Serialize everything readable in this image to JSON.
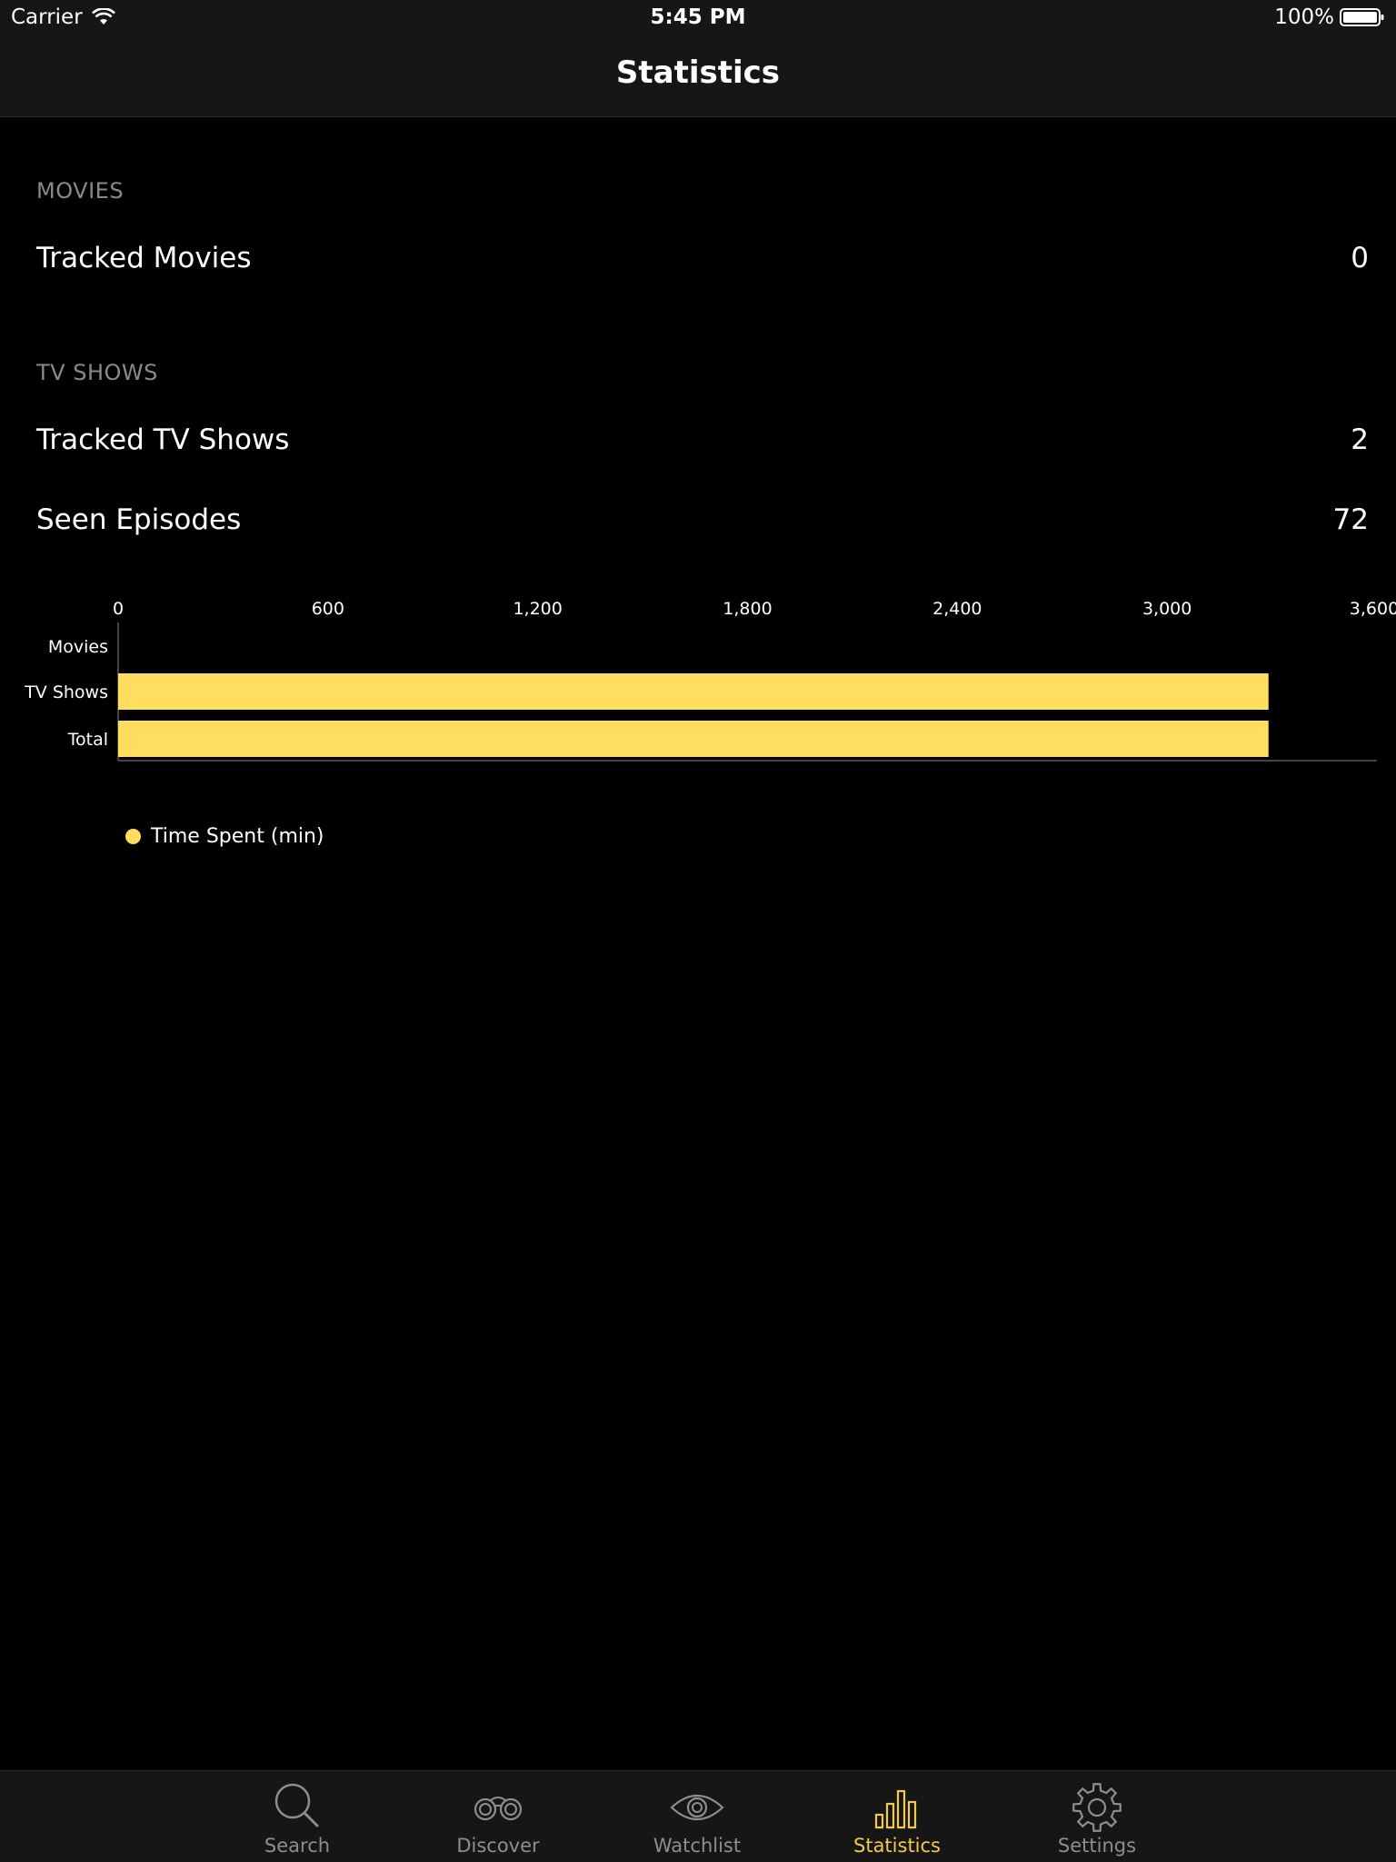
{
  "status_bar": {
    "carrier": "Carrier",
    "time": "5:45 PM",
    "battery": "100%"
  },
  "nav": {
    "title": "Statistics"
  },
  "sections": {
    "movies": {
      "header": "MOVIES",
      "tracked_label": "Tracked Movies",
      "tracked_value": "0"
    },
    "tv": {
      "header": "TV SHOWS",
      "tracked_label": "Tracked TV Shows",
      "tracked_value": "2",
      "episodes_label": "Seen Episodes",
      "episodes_value": "72"
    }
  },
  "chart_data": {
    "type": "bar",
    "orientation": "horizontal",
    "categories": [
      "Movies",
      "TV Shows",
      "Total"
    ],
    "series": [
      {
        "name": "Time Spent (min)",
        "values": [
          0,
          3290,
          3290
        ]
      }
    ],
    "xlim": [
      0,
      3600
    ],
    "x_ticks": [
      0,
      600,
      1200,
      1800,
      2400,
      3000,
      3600
    ],
    "x_tick_labels": [
      "0",
      "600",
      "1,200",
      "1,800",
      "2,400",
      "3,000",
      "3,600"
    ],
    "bar_color": "#ffdd5e",
    "legend_position": "bottom-left",
    "grid": false
  },
  "tabs": [
    {
      "label": "Search",
      "icon": "search-icon",
      "active": false
    },
    {
      "label": "Discover",
      "icon": "binoculars-icon",
      "active": false
    },
    {
      "label": "Watchlist",
      "icon": "eye-icon",
      "active": false
    },
    {
      "label": "Statistics",
      "icon": "bar-chart-icon",
      "active": true
    },
    {
      "label": "Settings",
      "icon": "gear-icon",
      "active": false
    }
  ],
  "colors": {
    "accent": "#f2c94c",
    "bar": "#ffdd5e",
    "background": "#000000",
    "bars_background": "#161616",
    "inactive_tab": "#8e8e8e"
  }
}
